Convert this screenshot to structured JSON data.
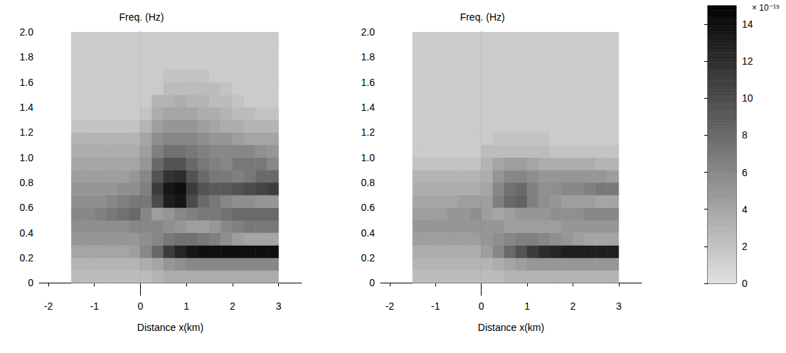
{
  "chart_data": [
    {
      "type": "heatmap",
      "xlabel": "Distance x(km)",
      "ylabel": "Freq. (Hz)",
      "xlim": [
        -2.2,
        3.5
      ],
      "xticks": [
        -2,
        -1,
        0,
        1,
        2,
        3
      ],
      "ylim": [
        -0.1,
        2.0
      ],
      "yticks": [
        0,
        0.2,
        0.4,
        0.6,
        0.8,
        {
          "value": 1,
          "label": "1.0"
        },
        1.2,
        1.4,
        1.6,
        1.8,
        {
          "value": 2,
          "label": "2.0"
        }
      ],
      "x_edges": [
        -1.5,
        -1.25,
        -1,
        -0.75,
        -0.5,
        -0.25,
        0,
        0.25,
        0.5,
        0.75,
        1,
        1.25,
        1.5,
        1.75,
        2,
        2.25,
        2.5,
        2.75,
        3
      ],
      "y_edges": [
        0,
        0.1,
        0.2,
        0.3,
        0.4,
        0.5,
        0.6,
        0.7,
        0.8,
        0.9,
        1.0,
        1.1,
        1.2,
        1.3,
        1.4,
        1.5,
        1.6,
        1.7,
        1.8,
        1.9,
        2.0
      ],
      "z": [
        [
          2.5,
          2.5,
          2.5,
          2.5,
          2.5,
          2.5,
          2.5,
          3,
          3.5,
          3.5,
          3.5,
          3.5,
          3.5,
          3.5,
          3.5,
          3.5,
          3.5,
          3.5
        ],
        [
          3,
          3,
          3,
          3,
          3,
          3,
          3.5,
          4,
          5,
          5.5,
          6,
          6,
          6,
          6,
          6,
          6,
          6,
          6
        ],
        [
          4,
          4,
          4,
          4,
          4,
          4.5,
          6,
          8,
          11,
          12.5,
          13.5,
          14,
          14,
          14,
          14,
          14,
          14,
          14
        ],
        [
          5,
          5,
          5,
          5,
          5,
          5,
          5.5,
          6,
          7,
          7.5,
          7.5,
          7,
          6.5,
          5.5,
          4.5,
          4,
          4,
          4
        ],
        [
          5.5,
          5.5,
          5.5,
          5.5,
          5.5,
          6,
          6,
          6,
          5.5,
          5,
          4.5,
          4.5,
          5,
          6,
          6.5,
          7,
          7,
          7
        ],
        [
          6,
          6,
          6.5,
          7,
          7.5,
          8,
          6,
          4.5,
          5,
          6,
          6.5,
          7,
          7,
          7.5,
          8,
          8,
          8,
          8
        ],
        [
          5.5,
          5.5,
          5.5,
          6,
          6.5,
          7,
          7,
          10,
          13,
          13.5,
          10,
          8,
          7,
          6,
          5.5,
          5.5,
          5,
          5
        ],
        [
          5,
          5,
          5,
          5,
          5.5,
          5.5,
          6.5,
          11,
          13.5,
          14,
          11,
          9.5,
          9,
          9,
          9.5,
          10,
          10.5,
          11
        ],
        [
          4.5,
          4.5,
          4.5,
          4.5,
          4.5,
          5,
          6,
          9.5,
          11.5,
          12,
          9.5,
          8,
          7,
          7,
          6.5,
          7,
          8,
          8
        ],
        [
          4,
          4,
          4,
          4,
          4,
          4,
          5,
          8,
          9.5,
          9.5,
          8,
          7,
          6.5,
          6,
          7,
          7,
          7,
          6
        ],
        [
          3.5,
          3.5,
          3.5,
          3.5,
          3.5,
          3.5,
          4.5,
          6.5,
          7.5,
          7.5,
          7,
          6.5,
          6,
          6,
          6,
          6,
          5.5,
          5
        ],
        [
          3,
          3,
          3,
          3,
          3,
          3,
          4,
          5.5,
          6,
          6,
          6,
          5.5,
          5,
          5,
          4.5,
          4,
          4,
          4
        ],
        [
          2,
          2,
          2,
          2,
          2,
          2,
          3,
          4.5,
          5,
          5,
          5,
          4.5,
          4,
          3.5,
          3.5,
          3,
          3,
          3
        ],
        [
          1.5,
          1.5,
          1.5,
          1.5,
          1.5,
          1.5,
          2,
          3.5,
          4,
          4,
          4,
          3.5,
          3.5,
          3,
          2.5,
          2.5,
          2,
          2
        ],
        [
          1.5,
          1.5,
          1.5,
          1.5,
          1.5,
          1.5,
          1.5,
          3,
          3,
          3.5,
          3,
          3,
          2.5,
          2.5,
          2,
          1.5,
          1.5,
          1.5
        ],
        [
          1.5,
          1.5,
          1.5,
          1.5,
          1.5,
          1.5,
          1.5,
          1.5,
          2.5,
          2.5,
          2.5,
          2.5,
          2.5,
          2,
          1.5,
          1.5,
          1.5,
          1.5
        ],
        [
          1.5,
          1.5,
          1.5,
          1.5,
          1.5,
          1.5,
          1.5,
          1.5,
          2,
          2,
          2,
          2,
          1.5,
          1.5,
          1.5,
          1.5,
          1.5,
          1.5
        ],
        [
          1.5,
          1.5,
          1.5,
          1.5,
          1.5,
          1.5,
          1.5,
          1.5,
          1.5,
          1.5,
          1.5,
          1.5,
          1.5,
          1.5,
          1.5,
          1.5,
          1.5,
          1.5
        ],
        [
          1.5,
          1.5,
          1.5,
          1.5,
          1.5,
          1.5,
          1.5,
          1.5,
          1.5,
          1.5,
          1.5,
          1.5,
          1.5,
          1.5,
          1.5,
          1.5,
          1.5,
          1.5
        ],
        [
          1.5,
          1.5,
          1.5,
          1.5,
          1.5,
          1.5,
          1.5,
          1.5,
          1.5,
          1.5,
          1.5,
          1.5,
          1.5,
          1.5,
          1.5,
          1.5,
          1.5,
          1.5
        ]
      ]
    },
    {
      "type": "heatmap",
      "xlabel": "Distance x(km)",
      "ylabel": "Freq. (Hz)",
      "xlim": [
        -2.2,
        3.5
      ],
      "xticks": [
        -2,
        -1,
        0,
        1,
        2,
        3
      ],
      "ylim": [
        -0.1,
        2.0
      ],
      "yticks": [
        0,
        0.2,
        0.4,
        0.6,
        0.8,
        {
          "value": 1,
          "label": "1.0"
        },
        1.2,
        1.4,
        1.6,
        1.8,
        {
          "value": 2,
          "label": "2.0"
        }
      ],
      "x_edges": [
        -1.5,
        -1.25,
        -1,
        -0.75,
        -0.5,
        -0.25,
        0,
        0.25,
        0.5,
        0.75,
        1,
        1.25,
        1.5,
        1.75,
        2,
        2.25,
        2.5,
        2.75,
        3
      ],
      "y_edges": [
        0,
        0.1,
        0.2,
        0.3,
        0.4,
        0.5,
        0.6,
        0.7,
        0.8,
        0.9,
        1.0,
        1.1,
        1.2,
        1.3,
        1.4,
        1.5,
        1.6,
        1.7,
        1.8,
        1.9,
        2.0
      ],
      "z": [
        [
          2.5,
          2.5,
          2.5,
          2.5,
          2.5,
          2.5,
          2.5,
          2.5,
          3,
          3,
          3,
          3,
          3,
          3,
          3,
          3,
          3,
          3
        ],
        [
          3,
          3,
          3,
          3,
          3,
          3,
          3,
          3.5,
          4,
          4.5,
          5,
          5,
          5,
          5,
          5,
          5,
          5,
          5
        ],
        [
          3.5,
          3.5,
          3.5,
          3.5,
          3.5,
          3.5,
          4.5,
          6,
          8,
          9.5,
          11,
          12,
          12.5,
          13,
          13,
          13,
          13,
          13
        ],
        [
          4.5,
          4.5,
          4.5,
          4.5,
          4.5,
          4.5,
          5,
          5.5,
          6,
          6.5,
          6.5,
          6,
          5.5,
          5,
          4.5,
          4,
          4,
          4
        ],
        [
          5,
          5,
          5,
          5,
          5,
          5,
          5,
          5,
          4.5,
          4.5,
          4.5,
          4.5,
          4.5,
          5,
          5,
          5,
          5,
          5
        ],
        [
          4.5,
          4.5,
          4.5,
          5,
          5,
          5.5,
          4.5,
          4,
          4.5,
          5,
          5,
          5,
          5.5,
          5.5,
          5.5,
          6,
          6,
          6
        ],
        [
          4,
          4,
          4,
          4,
          4.5,
          4.5,
          4.5,
          6.5,
          8,
          8.5,
          6.5,
          5.5,
          5,
          4.5,
          4.5,
          4.5,
          4,
          4
        ],
        [
          3.5,
          3.5,
          3.5,
          3.5,
          3.5,
          3.5,
          4,
          6,
          7.5,
          8,
          6.5,
          5.5,
          5.5,
          6,
          6,
          6.5,
          7,
          7
        ],
        [
          3,
          3,
          3,
          3,
          3,
          3,
          3.5,
          5,
          6,
          6,
          5.5,
          5,
          5,
          5,
          5,
          5,
          5,
          4.5
        ],
        [
          2,
          2,
          2,
          2,
          2,
          2,
          3,
          4,
          4.5,
          4.5,
          4,
          3.5,
          3.5,
          3.5,
          3.5,
          3.5,
          3,
          3
        ],
        [
          1.5,
          1.5,
          1.5,
          1.5,
          1.5,
          1.5,
          2.5,
          2.5,
          2.5,
          2.5,
          2.5,
          2.5,
          2,
          2,
          2,
          2,
          2,
          2
        ],
        [
          1.5,
          1.5,
          1.5,
          1.5,
          1.5,
          1.5,
          1.5,
          2,
          2,
          2,
          2,
          2,
          1.5,
          1.5,
          1.5,
          1.5,
          1.5,
          1.5
        ],
        [
          1.5,
          1.5,
          1.5,
          1.5,
          1.5,
          1.5,
          1.5,
          1.5,
          1.5,
          1.5,
          1.5,
          1.5,
          1.5,
          1.5,
          1.5,
          1.5,
          1.5,
          1.5
        ],
        [
          1.5,
          1.5,
          1.5,
          1.5,
          1.5,
          1.5,
          1.5,
          1.5,
          1.5,
          1.5,
          1.5,
          1.5,
          1.5,
          1.5,
          1.5,
          1.5,
          1.5,
          1.5
        ],
        [
          1.5,
          1.5,
          1.5,
          1.5,
          1.5,
          1.5,
          1.5,
          1.5,
          1.5,
          1.5,
          1.5,
          1.5,
          1.5,
          1.5,
          1.5,
          1.5,
          1.5,
          1.5
        ],
        [
          1.5,
          1.5,
          1.5,
          1.5,
          1.5,
          1.5,
          1.5,
          1.5,
          1.5,
          1.5,
          1.5,
          1.5,
          1.5,
          1.5,
          1.5,
          1.5,
          1.5,
          1.5
        ],
        [
          1.5,
          1.5,
          1.5,
          1.5,
          1.5,
          1.5,
          1.5,
          1.5,
          1.5,
          1.5,
          1.5,
          1.5,
          1.5,
          1.5,
          1.5,
          1.5,
          1.5,
          1.5
        ],
        [
          1.5,
          1.5,
          1.5,
          1.5,
          1.5,
          1.5,
          1.5,
          1.5,
          1.5,
          1.5,
          1.5,
          1.5,
          1.5,
          1.5,
          1.5,
          1.5,
          1.5,
          1.5
        ],
        [
          1.5,
          1.5,
          1.5,
          1.5,
          1.5,
          1.5,
          1.5,
          1.5,
          1.5,
          1.5,
          1.5,
          1.5,
          1.5,
          1.5,
          1.5,
          1.5,
          1.5,
          1.5
        ],
        [
          1.5,
          1.5,
          1.5,
          1.5,
          1.5,
          1.5,
          1.5,
          1.5,
          1.5,
          1.5,
          1.5,
          1.5,
          1.5,
          1.5,
          1.5,
          1.5,
          1.5,
          1.5
        ]
      ],
      "colorbar": {
        "range": [
          0,
          15
        ],
        "ticks": [
          0,
          2,
          4,
          6,
          8,
          10,
          12,
          14
        ],
        "label": "× 10⁻¹⁵"
      }
    }
  ]
}
